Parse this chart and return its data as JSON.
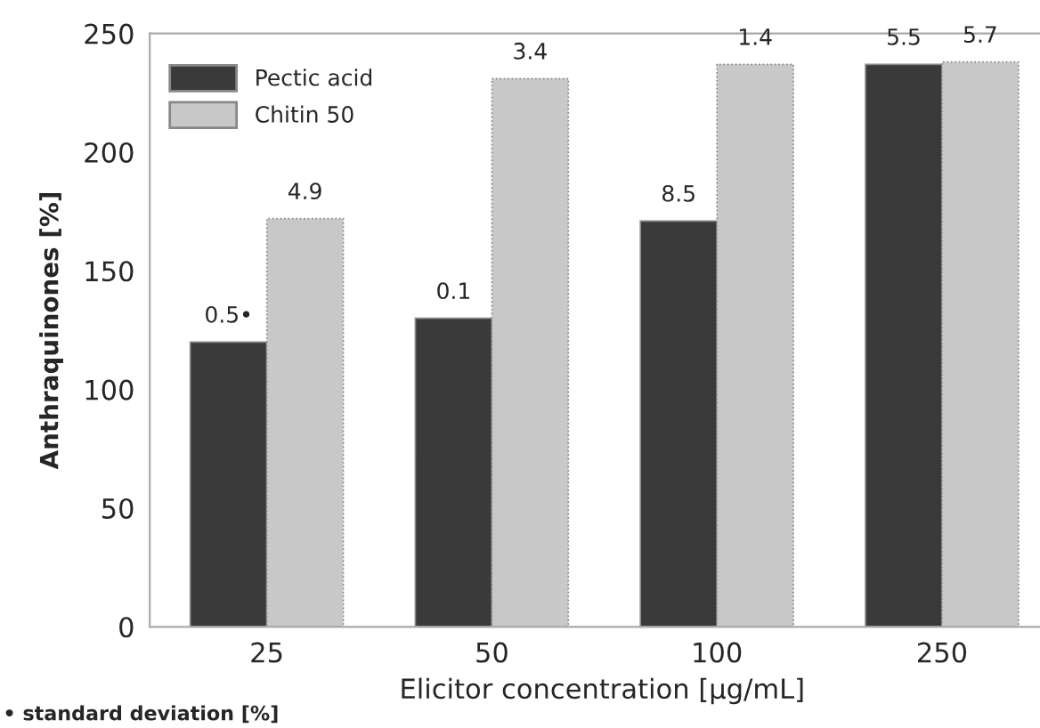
{
  "chart_data": {
    "type": "bar",
    "xlabel": "Elicitor concentration [µg/mL]",
    "ylabel": "Anthraquinones [%]",
    "categories": [
      "25",
      "50",
      "100",
      "250"
    ],
    "series": [
      {
        "name": "Pectic acid",
        "color": "#3a3a3a",
        "values": [
          120,
          130,
          171,
          237
        ]
      },
      {
        "name": "Chitin 50",
        "color": "#c8c8c8",
        "values": [
          172,
          231,
          237,
          238
        ]
      }
    ],
    "ylim": [
      0,
      250
    ],
    "yticks": [
      0,
      50,
      100,
      150,
      200,
      250
    ],
    "grid": false,
    "legend": "top left",
    "annotations": [
      {
        "text": "0.5•",
        "x": "25",
        "y": 120
      },
      {
        "text": "0.1",
        "x": "50",
        "y": 130
      },
      {
        "text": "8.5",
        "x": "100",
        "y": 171
      },
      {
        "text": "5.5",
        "x": "250",
        "y": 237
      },
      {
        "text": "4.9",
        "x": "25",
        "y": 172
      },
      {
        "text": "3.4",
        "x": "50",
        "y": 231
      },
      {
        "text": "1.4",
        "x": "100",
        "y": 237
      },
      {
        "text": "5.7",
        "x": "250",
        "y": 238
      },
      "• standard deviation [%]"
    ]
  }
}
